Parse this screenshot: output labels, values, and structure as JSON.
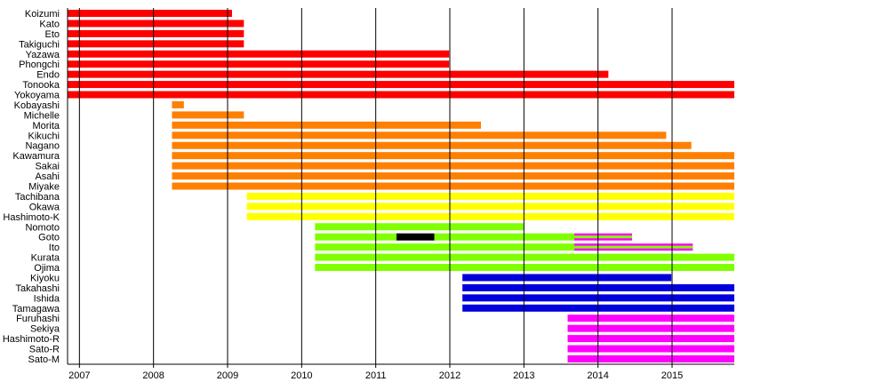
{
  "chart_data": {
    "type": "timeline",
    "title": "",
    "xlabel": "",
    "ylabel": "",
    "xlim": [
      2006.84,
      2015.84
    ],
    "x_ticks": [
      "2007",
      "2008",
      "2009",
      "2010",
      "2011",
      "2012",
      "2013",
      "2014",
      "2015"
    ],
    "grid": "vertical lines at each year",
    "colors": {
      "red": "#ff0000",
      "orange": "#ff8000",
      "yellow": "#ffff00",
      "green": "#80ff00",
      "blue": "#0000dd",
      "magenta": "#ff00ff",
      "black": "#000000"
    },
    "rows": [
      {
        "name": "Koizumi",
        "segments": [
          {
            "start": 2006.84,
            "end": 2009.06,
            "color": "red"
          }
        ]
      },
      {
        "name": "Kato",
        "segments": [
          {
            "start": 2006.84,
            "end": 2009.22,
            "color": "red"
          }
        ]
      },
      {
        "name": "Eto",
        "segments": [
          {
            "start": 2006.84,
            "end": 2009.22,
            "color": "red"
          }
        ]
      },
      {
        "name": "Takiguchi",
        "segments": [
          {
            "start": 2006.84,
            "end": 2009.22,
            "color": "red"
          }
        ]
      },
      {
        "name": "Yazawa",
        "segments": [
          {
            "start": 2006.84,
            "end": 2011.99,
            "color": "red"
          }
        ]
      },
      {
        "name": "Phongchi",
        "segments": [
          {
            "start": 2006.84,
            "end": 2011.99,
            "color": "red"
          }
        ]
      },
      {
        "name": "Endo",
        "segments": [
          {
            "start": 2006.84,
            "end": 2014.14,
            "color": "red"
          }
        ]
      },
      {
        "name": "Tonooka",
        "segments": [
          {
            "start": 2006.84,
            "end": 2015.84,
            "color": "red"
          }
        ]
      },
      {
        "name": "Yokoyama",
        "segments": [
          {
            "start": 2006.84,
            "end": 2015.84,
            "color": "red"
          }
        ]
      },
      {
        "name": "Kobayashi",
        "segments": [
          {
            "start": 2008.25,
            "end": 2008.41,
            "color": "orange"
          }
        ]
      },
      {
        "name": "Michelle",
        "segments": [
          {
            "start": 2008.25,
            "end": 2009.22,
            "color": "orange"
          }
        ]
      },
      {
        "name": "Morita",
        "segments": [
          {
            "start": 2008.25,
            "end": 2012.42,
            "color": "orange"
          }
        ]
      },
      {
        "name": "Kikuchi",
        "segments": [
          {
            "start": 2008.25,
            "end": 2014.92,
            "color": "orange"
          }
        ]
      },
      {
        "name": "Nagano",
        "segments": [
          {
            "start": 2008.25,
            "end": 2015.26,
            "color": "orange"
          }
        ]
      },
      {
        "name": "Kawamura",
        "segments": [
          {
            "start": 2008.25,
            "end": 2015.84,
            "color": "orange"
          }
        ]
      },
      {
        "name": "Sakai",
        "segments": [
          {
            "start": 2008.25,
            "end": 2015.84,
            "color": "orange"
          }
        ]
      },
      {
        "name": "Asahi",
        "segments": [
          {
            "start": 2008.25,
            "end": 2015.84,
            "color": "orange"
          }
        ]
      },
      {
        "name": "Miyake",
        "segments": [
          {
            "start": 2008.25,
            "end": 2015.84,
            "color": "orange"
          }
        ]
      },
      {
        "name": "Tachibana",
        "segments": [
          {
            "start": 2009.26,
            "end": 2015.84,
            "color": "yellow"
          }
        ]
      },
      {
        "name": "Okawa",
        "segments": [
          {
            "start": 2009.26,
            "end": 2015.84,
            "color": "yellow"
          }
        ]
      },
      {
        "name": "Hashimoto-K",
        "segments": [
          {
            "start": 2009.26,
            "end": 2015.84,
            "color": "yellow"
          }
        ]
      },
      {
        "name": "Nomoto",
        "segments": [
          {
            "start": 2010.18,
            "end": 2013.0,
            "color": "green"
          }
        ]
      },
      {
        "name": "Goto",
        "segments": [
          {
            "start": 2010.18,
            "end": 2011.28,
            "color": "green"
          },
          {
            "start": 2011.28,
            "end": 2011.79,
            "color": "black"
          },
          {
            "start": 2011.79,
            "end": 2013.68,
            "color": "green"
          },
          {
            "start": 2013.68,
            "end": 2014.46,
            "color": "magenta",
            "inner": "green"
          }
        ]
      },
      {
        "name": "Ito",
        "segments": [
          {
            "start": 2010.18,
            "end": 2013.68,
            "color": "green"
          },
          {
            "start": 2013.68,
            "end": 2015.28,
            "color": "magenta",
            "inner": "green"
          }
        ]
      },
      {
        "name": "Kurata",
        "segments": [
          {
            "start": 2010.18,
            "end": 2015.84,
            "color": "green"
          }
        ]
      },
      {
        "name": "Ojima",
        "segments": [
          {
            "start": 2010.18,
            "end": 2015.84,
            "color": "green"
          }
        ]
      },
      {
        "name": "Kiyoku",
        "segments": [
          {
            "start": 2012.17,
            "end": 2014.99,
            "color": "blue"
          }
        ]
      },
      {
        "name": "Takahashi",
        "segments": [
          {
            "start": 2012.17,
            "end": 2015.84,
            "color": "blue"
          }
        ]
      },
      {
        "name": "Ishida",
        "segments": [
          {
            "start": 2012.17,
            "end": 2015.84,
            "color": "blue"
          }
        ]
      },
      {
        "name": "Tamagawa",
        "segments": [
          {
            "start": 2012.17,
            "end": 2015.84,
            "color": "blue"
          }
        ]
      },
      {
        "name": "Furuhashi",
        "segments": [
          {
            "start": 2013.59,
            "end": 2015.84,
            "color": "magenta"
          }
        ]
      },
      {
        "name": "Sekiya",
        "segments": [
          {
            "start": 2013.59,
            "end": 2015.84,
            "color": "magenta"
          }
        ]
      },
      {
        "name": "Hashimoto-R",
        "segments": [
          {
            "start": 2013.59,
            "end": 2015.84,
            "color": "magenta"
          }
        ]
      },
      {
        "name": "Sato-R",
        "segments": [
          {
            "start": 2013.59,
            "end": 2015.84,
            "color": "magenta"
          }
        ]
      },
      {
        "name": "Sato-M",
        "segments": [
          {
            "start": 2013.59,
            "end": 2015.84,
            "color": "magenta"
          }
        ]
      }
    ]
  }
}
